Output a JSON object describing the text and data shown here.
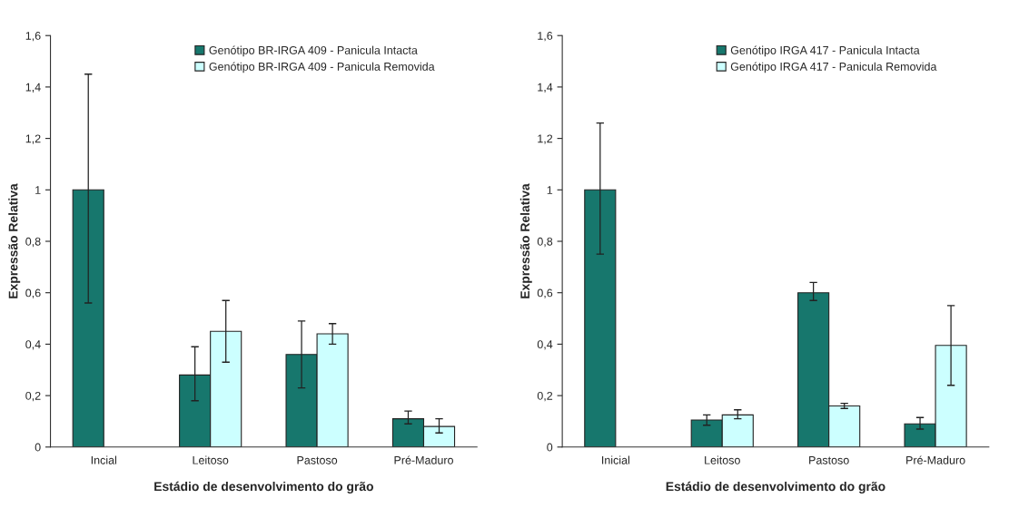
{
  "chart_data": [
    {
      "type": "bar",
      "categories": [
        "Incial",
        "Leitoso",
        "Pastoso",
        "Pré-Maduro"
      ],
      "xlabel": "Estádio de desenvolvimento do grão",
      "ylabel": "Expressão Relativa",
      "ylim": [
        0,
        1.6
      ],
      "yticks": [
        0,
        {
          "value": 0.2,
          "label": "0,2"
        },
        {
          "value": 0.4,
          "label": "0,4"
        },
        {
          "value": 0.6,
          "label": "0,6"
        },
        {
          "value": 0.8,
          "label": "0,8"
        },
        1,
        {
          "value": 1.2,
          "label": "1,2"
        },
        {
          "value": 1.4,
          "label": "1,4"
        },
        {
          "value": 1.6,
          "label": "1,6"
        }
      ],
      "grid": false,
      "legend": "top",
      "series": [
        {
          "name": "Genótipo BR-IRGA 409 - Panicula Intacta",
          "color": "#17776d",
          "values": [
            1.0,
            0.28,
            0.36,
            0.11
          ],
          "errors": [
            [
              0.56,
              1.45
            ],
            [
              0.18,
              0.39
            ],
            [
              0.23,
              0.49
            ],
            [
              0.09,
              0.14
            ]
          ]
        },
        {
          "name": "Genótipo BR-IRGA 409 - Panicula Removida",
          "color": "#ccffff",
          "values": [
            null,
            0.45,
            0.44,
            0.08
          ],
          "errors": [
            null,
            [
              0.33,
              0.57
            ],
            [
              0.4,
              0.48
            ],
            [
              0.055,
              0.11
            ]
          ]
        }
      ]
    },
    {
      "type": "bar",
      "categories": [
        "Inicial",
        "Leitoso",
        "Pastoso",
        "Pré-Maduro"
      ],
      "xlabel": "Estádio de desenvolvimento do grão",
      "ylabel": "Expressão Relativa",
      "ylim": [
        0,
        1.6
      ],
      "yticks": [
        0,
        {
          "value": 0.2,
          "label": "0,2"
        },
        {
          "value": 0.4,
          "label": "0,4"
        },
        {
          "value": 0.6,
          "label": "0,6"
        },
        {
          "value": 0.8,
          "label": "0,8"
        },
        1,
        {
          "value": 1.2,
          "label": "1,2"
        },
        {
          "value": 1.4,
          "label": "1,4"
        },
        {
          "value": 1.6,
          "label": "1,6"
        }
      ],
      "grid": false,
      "legend": "top",
      "series": [
        {
          "name": "Genótipo IRGA 417 - Panicula Intacta",
          "color": "#17776d",
          "values": [
            1.0,
            0.105,
            0.6,
            0.09
          ],
          "errors": [
            [
              0.75,
              1.26
            ],
            [
              0.085,
              0.125
            ],
            [
              0.57,
              0.64
            ],
            [
              0.07,
              0.115
            ]
          ]
        },
        {
          "name": "Genótipo IRGA 417 - Panicula Removida",
          "color": "#ccffff",
          "values": [
            null,
            0.125,
            0.16,
            0.395
          ],
          "errors": [
            null,
            [
              0.11,
              0.145
            ],
            [
              0.15,
              0.17
            ],
            [
              0.24,
              0.55
            ]
          ]
        }
      ]
    }
  ]
}
